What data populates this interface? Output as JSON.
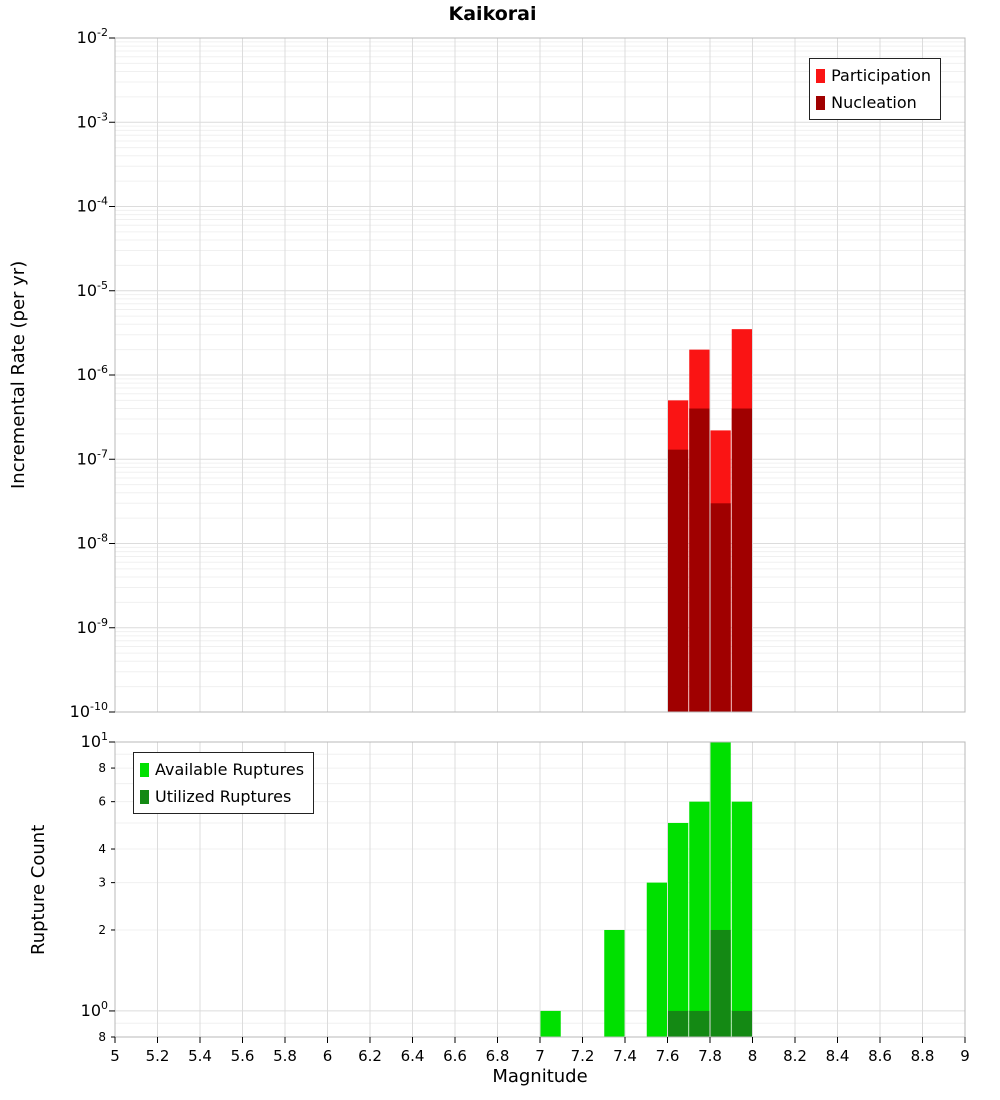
{
  "style": {
    "grid_major": "#dcdcdc",
    "grid_minor": "#f0f0f0",
    "frame": "#b8b8b8",
    "axis": "#000000",
    "background": "#ffffff"
  },
  "chart_data": [
    {
      "id": "rate",
      "type": "bar",
      "title": "Kaikorai",
      "xlabel": "",
      "ylabel": "Incremental Rate (per yr)",
      "xscale": "linear",
      "yscale": "log",
      "xlim": [
        5,
        9
      ],
      "ylim": [
        1e-10,
        0.01
      ],
      "x_tick_step": 0.2,
      "show_x_tick_labels": false,
      "bin_width": 0.1,
      "grid": true,
      "legend_position": "top-right",
      "series": [
        {
          "name": "Participation",
          "color": "#fa1414",
          "x": [
            7.6,
            7.7,
            7.8,
            7.9
          ],
          "values": [
            5e-07,
            2e-06,
            2.2e-07,
            3.5e-06
          ]
        },
        {
          "name": "Nucleation",
          "color": "#a00000",
          "x": [
            7.6,
            7.7,
            7.8,
            7.9
          ],
          "values": [
            1.3e-07,
            4e-07,
            3e-08,
            4e-07
          ]
        }
      ],
      "y_ticks": [
        {
          "value": 0.01,
          "label": "10",
          "exp": "-2"
        },
        {
          "value": 0.001,
          "label": "10",
          "exp": "-3"
        },
        {
          "value": 0.0001,
          "label": "10",
          "exp": "-4"
        },
        {
          "value": 1e-05,
          "label": "10",
          "exp": "-5"
        },
        {
          "value": 1e-06,
          "label": "10",
          "exp": "-6"
        },
        {
          "value": 1e-07,
          "label": "10",
          "exp": "-7"
        },
        {
          "value": 1e-08,
          "label": "10",
          "exp": "-8"
        },
        {
          "value": 1e-09,
          "label": "10",
          "exp": "-9"
        },
        {
          "value": 1e-10,
          "label": "10",
          "exp": "-10"
        }
      ]
    },
    {
      "id": "count",
      "type": "bar",
      "title": "",
      "xlabel": "Magnitude",
      "ylabel": "Rupture Count",
      "xscale": "linear",
      "yscale": "log",
      "xlim": [
        5,
        9
      ],
      "ylim": [
        0.8,
        10
      ],
      "x_tick_step": 0.2,
      "show_x_tick_labels": true,
      "x_tick_labels": [
        "5",
        "5.2",
        "5.4",
        "5.6",
        "5.8",
        "6",
        "6.2",
        "6.4",
        "6.6",
        "6.8",
        "7",
        "7.2",
        "7.4",
        "7.6",
        "7.8",
        "8",
        "8.2",
        "8.4",
        "8.6",
        "8.8",
        "9"
      ],
      "bin_width": 0.1,
      "grid": true,
      "legend_position": "top-left",
      "series": [
        {
          "name": "Available Ruptures",
          "color": "#00e000",
          "x": [
            7.0,
            7.3,
            7.5,
            7.6,
            7.7,
            7.8,
            7.9
          ],
          "values": [
            1,
            2,
            3,
            5,
            6,
            10,
            6
          ]
        },
        {
          "name": "Utilized Ruptures",
          "color": "#148914",
          "x": [
            7.6,
            7.7,
            7.8,
            7.9
          ],
          "values": [
            1,
            1,
            2,
            1
          ]
        }
      ],
      "y_ticks": [
        {
          "value": 10,
          "label": "10",
          "exp": "1"
        },
        {
          "value": 8,
          "label": "8"
        },
        {
          "value": 6,
          "label": "6"
        },
        {
          "value": 4,
          "label": "4"
        },
        {
          "value": 3,
          "label": "3"
        },
        {
          "value": 2,
          "label": "2"
        },
        {
          "value": 1,
          "label": "10",
          "exp": "0"
        },
        {
          "value": 0.8,
          "label": "8"
        }
      ]
    }
  ]
}
